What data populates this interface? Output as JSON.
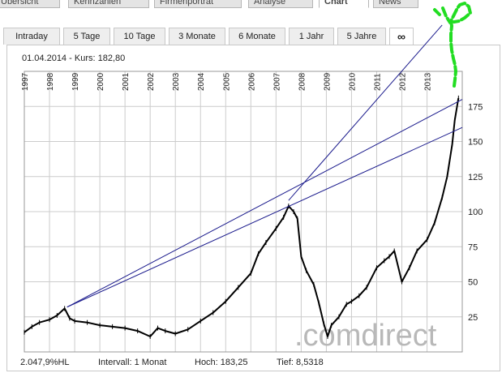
{
  "tabs": {
    "top": [
      "Übersicht",
      "Kennzahlen",
      "Firmenporträt",
      "Analyse",
      "Chart",
      "News"
    ],
    "top_active": "Chart",
    "range": [
      "Intraday",
      "5 Tage",
      "10 Tage",
      "3 Monate",
      "6 Monate",
      "1 Jahr",
      "5 Jahre",
      "∞"
    ],
    "range_active": "∞"
  },
  "header": {
    "date": "01.04.2014",
    "separator": "-",
    "kurs_label": "Kurs:",
    "kurs_value": "182,80"
  },
  "footer": {
    "performance": "2.047,9%HL",
    "intervall": "Intervall: 1 Monat",
    "hoch": "Hoch:   183,25",
    "tief": "Tief:  8,5318"
  },
  "watermark": ".comdirect",
  "colors": {
    "price": "#000000",
    "trendlines": "#1a1a8c",
    "annotation": "#22dd22",
    "grid": "#cccccc"
  },
  "chart_data": {
    "type": "line",
    "title": "",
    "xlabel": "",
    "ylabel": "",
    "x_tick_labels": [
      "1997",
      "1998",
      "1999",
      "2000",
      "2001",
      "2002",
      "2003",
      "2004",
      "2005",
      "2006",
      "2007",
      "2008",
      "2009",
      "2010",
      "2011",
      "2012",
      "2013"
    ],
    "y_tick_labels": [
      "25",
      "50",
      "75",
      "100",
      "125",
      "150",
      "175"
    ],
    "xlim": [
      1997.0,
      2014.4
    ],
    "ylim": [
      0,
      200
    ],
    "grid": true,
    "series": [
      {
        "x": [
          1997.0,
          1997.3,
          1997.6,
          1998.0,
          1998.3,
          1998.6,
          1998.8,
          1999.0,
          1999.5,
          2000.0,
          2000.5,
          2001.0,
          2001.5,
          2002.0,
          2002.3,
          2002.6,
          2003.0,
          2003.5,
          2004.0,
          2004.5,
          2005.0,
          2005.5,
          2006.0,
          2006.3,
          2006.6,
          2007.0,
          2007.3,
          2007.5,
          2007.7,
          2007.85,
          2008.0,
          2008.2,
          2008.5,
          2008.7,
          2008.9,
          2009.05,
          2009.2,
          2009.5,
          2009.8,
          2010.0,
          2010.3,
          2010.6,
          2011.0,
          2011.3,
          2011.5,
          2011.7,
          2012.0,
          2012.3,
          2012.6,
          2013.0,
          2013.3,
          2013.6,
          2013.8,
          2014.0,
          2014.1,
          2014.25
        ],
        "y": [
          14,
          18,
          21,
          23,
          26,
          31,
          24,
          22,
          21,
          19,
          18,
          17,
          15,
          11,
          17,
          15,
          13,
          16,
          22,
          28,
          36,
          46,
          56,
          70,
          78,
          88,
          96,
          104,
          100,
          95,
          68,
          58,
          48,
          35,
          20,
          11,
          19,
          25,
          34,
          36,
          40,
          46,
          60,
          65,
          68,
          72,
          50,
          60,
          72,
          80,
          92,
          110,
          125,
          148,
          165,
          181
        ]
      }
    ],
    "trendlines": [
      {
        "x": [
          1998.7,
          2014.4
        ],
        "y": [
          32,
          180
        ]
      },
      {
        "x": [
          1998.7,
          2014.4
        ],
        "y": [
          32,
          160
        ]
      },
      {
        "x": [
          2007.5,
          2013.6
        ],
        "y": [
          108,
          233
        ]
      }
    ]
  }
}
